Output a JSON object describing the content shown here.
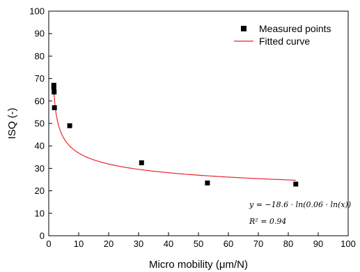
{
  "chart_data": {
    "type": "scatter",
    "xlabel": "Micro mobility (μm/N)",
    "ylabel": "ISQ (-)",
    "xlim": [
      0,
      100
    ],
    "ylim": [
      0,
      100
    ],
    "xticks": [
      0,
      10,
      20,
      30,
      40,
      50,
      60,
      70,
      80,
      90,
      100
    ],
    "yticks": [
      0,
      10,
      20,
      30,
      40,
      50,
      60,
      70,
      80,
      90,
      100
    ],
    "grid": false,
    "legend_position": "top-right",
    "series": [
      {
        "name": "Measured points",
        "kind": "scatter",
        "marker": "square",
        "color": "#000000",
        "x": [
          1.7,
          1.7,
          1.8,
          1.9,
          7.0,
          31.0,
          53.0,
          82.5
        ],
        "y": [
          67,
          66,
          64,
          57,
          49,
          32.5,
          23.5,
          23
        ]
      },
      {
        "name": "Fitted curve",
        "kind": "line",
        "color": "#e8262b",
        "x_range": [
          1.7,
          82.5
        ],
        "equation": "y = −18.6 · ln(0.06 · ln(x))"
      }
    ],
    "annotations": [
      "y = −18.6 · ln(0.06 · ln(x))",
      "R² = 0.94"
    ]
  }
}
